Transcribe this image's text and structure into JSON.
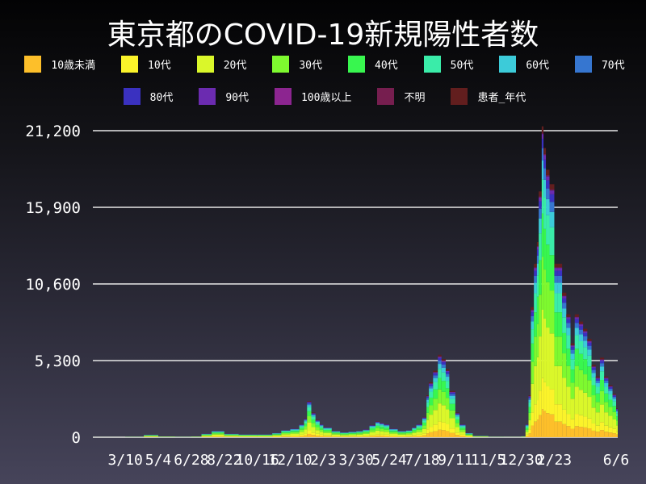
{
  "chart_data": {
    "type": "bar",
    "stacked": true,
    "title": "東京都のCOVID-19新規陽性者数",
    "xlabel": "",
    "ylabel": "",
    "ylim": [
      0,
      21200
    ],
    "yticks": [
      0,
      5300,
      10600,
      15900,
      21200
    ],
    "ytick_labels": [
      "0",
      "5,300",
      "10,600",
      "15,900",
      "21,200"
    ],
    "xlim": [
      "2020-01-16",
      "2022-06-06"
    ],
    "xticks": [
      "2020-03-10",
      "2020-05-04",
      "2020-06-28",
      "2020-08-22",
      "2020-10-16",
      "2020-12-10",
      "2021-02-03",
      "2021-03-30",
      "2021-05-24",
      "2021-07-18",
      "2021-09-11",
      "2021-11-05",
      "2021-12-30",
      "2022-02-23",
      "2022-06-06"
    ],
    "xtick_labels": [
      "3/10",
      "5/4",
      "6/28",
      "8/22",
      "10/16",
      "12/10",
      "2/3",
      "3/30",
      "5/24",
      "7/18",
      "9/11",
      "11/5",
      "12/30",
      "2/23",
      "6/6"
    ],
    "grid": "horizontal",
    "legend": "top",
    "series": [
      {
        "name": "10歳未満",
        "color": "#fdbf2a",
        "share_pct": 9
      },
      {
        "name": "10代",
        "color": "#fbf32a",
        "share_pct": 10
      },
      {
        "name": "20代",
        "color": "#daf72a",
        "share_pct": 22
      },
      {
        "name": "30代",
        "color": "#7ef92f",
        "share_pct": 17
      },
      {
        "name": "40代",
        "color": "#38f64f",
        "share_pct": 14
      },
      {
        "name": "50代",
        "color": "#3aeca9",
        "share_pct": 11
      },
      {
        "name": "60代",
        "color": "#3ccbd9",
        "share_pct": 6
      },
      {
        "name": "70代",
        "color": "#3676d0",
        "share_pct": 4
      },
      {
        "name": "80代",
        "color": "#3a31c0",
        "share_pct": 3
      },
      {
        "name": "90代",
        "color": "#6b2bb0",
        "share_pct": 1.5
      },
      {
        "name": "100歳以上",
        "color": "#8c2590",
        "share_pct": 0.1
      },
      {
        "name": "不明",
        "color": "#761e4f",
        "share_pct": 0.4
      },
      {
        "name": "患者_年代",
        "color": "#621e1e",
        "share_pct": 2
      }
    ],
    "totals": [
      [
        "2020-01-16",
        5
      ],
      [
        "2020-03-10",
        30
      ],
      [
        "2020-04-10",
        180
      ],
      [
        "2020-05-04",
        60
      ],
      [
        "2020-06-01",
        30
      ],
      [
        "2020-06-28",
        60
      ],
      [
        "2020-07-15",
        250
      ],
      [
        "2020-08-01",
        450
      ],
      [
        "2020-08-22",
        250
      ],
      [
        "2020-09-15",
        200
      ],
      [
        "2020-10-16",
        200
      ],
      [
        "2020-11-10",
        300
      ],
      [
        "2020-11-25",
        500
      ],
      [
        "2020-12-10",
        600
      ],
      [
        "2020-12-25",
        900
      ],
      [
        "2021-01-02",
        1300
      ],
      [
        "2021-01-07",
        2500
      ],
      [
        "2021-01-14",
        1700
      ],
      [
        "2021-01-21",
        1200
      ],
      [
        "2021-01-28",
        900
      ],
      [
        "2021-02-03",
        700
      ],
      [
        "2021-02-17",
        450
      ],
      [
        "2021-03-03",
        350
      ],
      [
        "2021-03-17",
        400
      ],
      [
        "2021-03-30",
        450
      ],
      [
        "2021-04-10",
        550
      ],
      [
        "2021-04-21",
        850
      ],
      [
        "2021-05-01",
        1100
      ],
      [
        "2021-05-08",
        1000
      ],
      [
        "2021-05-15",
        900
      ],
      [
        "2021-05-24",
        600
      ],
      [
        "2021-06-07",
        450
      ],
      [
        "2021-06-21",
        500
      ],
      [
        "2021-07-01",
        700
      ],
      [
        "2021-07-08",
        900
      ],
      [
        "2021-07-18",
        1400
      ],
      [
        "2021-07-25",
        2900
      ],
      [
        "2021-07-29",
        3800
      ],
      [
        "2021-08-05",
        4600
      ],
      [
        "2021-08-13",
        5700
      ],
      [
        "2021-08-19",
        5400
      ],
      [
        "2021-08-26",
        4700
      ],
      [
        "2021-09-01",
        3200
      ],
      [
        "2021-09-11",
        1700
      ],
      [
        "2021-09-18",
        900
      ],
      [
        "2021-09-28",
        300
      ],
      [
        "2021-10-10",
        100
      ],
      [
        "2021-11-05",
        30
      ],
      [
        "2021-12-01",
        20
      ],
      [
        "2021-12-30",
        70
      ],
      [
        "2022-01-06",
        900
      ],
      [
        "2022-01-11",
        2900
      ],
      [
        "2022-01-15",
        9000
      ],
      [
        "2022-01-20",
        12000
      ],
      [
        "2022-01-25",
        13500
      ],
      [
        "2022-01-28",
        17000
      ],
      [
        "2022-02-02",
        21500
      ],
      [
        "2022-02-05",
        20000
      ],
      [
        "2022-02-09",
        18500
      ],
      [
        "2022-02-15",
        17500
      ],
      [
        "2022-02-23",
        12000
      ],
      [
        "2022-03-01",
        12000
      ],
      [
        "2022-03-08",
        10000
      ],
      [
        "2022-03-15",
        8500
      ],
      [
        "2022-03-22",
        6500
      ],
      [
        "2022-03-29",
        8500
      ],
      [
        "2022-04-05",
        8000
      ],
      [
        "2022-04-12",
        7500
      ],
      [
        "2022-04-19",
        6800
      ],
      [
        "2022-04-26",
        5000
      ],
      [
        "2022-05-03",
        4200
      ],
      [
        "2022-05-10",
        5500
      ],
      [
        "2022-05-17",
        4200
      ],
      [
        "2022-05-24",
        3600
      ],
      [
        "2022-05-31",
        3000
      ],
      [
        "2022-06-06",
        2000
      ]
    ]
  }
}
